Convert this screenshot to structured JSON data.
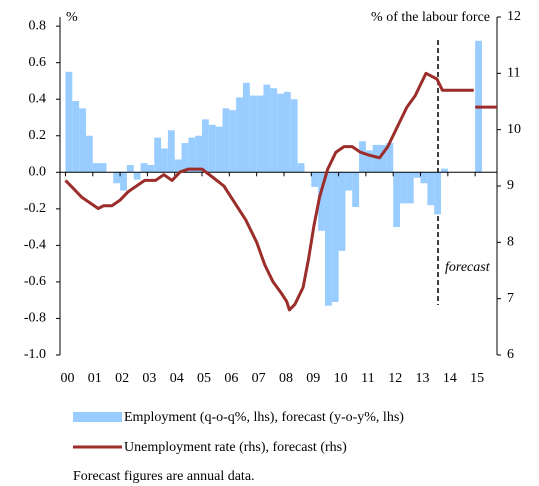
{
  "chart_data": {
    "type": "bar-line",
    "left_unit": "%",
    "right_unit": "% of the labour force",
    "annotation": "forecast",
    "footnote": "Forecast figures are annual data.",
    "xlim": [
      1999.8,
      2015.8
    ],
    "xticks": [
      {
        "value": 2000,
        "label": "00"
      },
      {
        "value": 2001,
        "label": "01"
      },
      {
        "value": 2002,
        "label": "02"
      },
      {
        "value": 2003,
        "label": "03"
      },
      {
        "value": 2004,
        "label": "04"
      },
      {
        "value": 2005,
        "label": "05"
      },
      {
        "value": 2006,
        "label": "06"
      },
      {
        "value": 2007,
        "label": "07"
      },
      {
        "value": 2008,
        "label": "08"
      },
      {
        "value": 2009,
        "label": "09"
      },
      {
        "value": 2010,
        "label": "10"
      },
      {
        "value": 2011,
        "label": "11"
      },
      {
        "value": 2012,
        "label": "12"
      },
      {
        "value": 2013,
        "label": "13"
      },
      {
        "value": 2014,
        "label": "14"
      },
      {
        "value": 2015,
        "label": "15"
      }
    ],
    "ylim": [
      -1,
      0.85
    ],
    "yticks": [
      {
        "value": -1,
        "label": "-1.0"
      },
      -0.8,
      -0.6,
      -0.4,
      -0.2,
      {
        "value": 0,
        "label": "0.0"
      },
      0.2,
      0.4,
      0.6,
      0.8
    ],
    "y2lim": [
      6,
      12
    ],
    "y2ticks": [
      6,
      7,
      8,
      9,
      10,
      11,
      12
    ],
    "series": [
      {
        "name": "Employment (q-o-q%, lhs), forecast (y-o-y%, lhs)",
        "color": "#99ccff",
        "x": [
          2000,
          2000.25,
          2000.5,
          2000.75,
          2001,
          2001.25,
          2001.5,
          2001.75,
          2002,
          2002.25,
          2002.5,
          2002.75,
          2003,
          2003.25,
          2003.5,
          2003.75,
          2004,
          2004.25,
          2004.5,
          2004.75,
          2005,
          2005.25,
          2005.5,
          2005.75,
          2006,
          2006.25,
          2006.5,
          2006.75,
          2007,
          2007.25,
          2007.5,
          2007.75,
          2008,
          2008.25,
          2008.5,
          2008.75,
          2009,
          2009.25,
          2009.5,
          2009.75,
          2010,
          2010.25,
          2010.5,
          2010.75,
          2011,
          2011.25,
          2011.5,
          2011.75,
          2012,
          2012.25,
          2012.5,
          2012.75,
          2013,
          2013.25,
          2013.5,
          2013.75,
          2015
        ],
        "values": [
          0.55,
          0.39,
          0.35,
          0.2,
          0.05,
          0.05,
          0.0,
          -0.06,
          -0.1,
          0.04,
          -0.04,
          0.05,
          0.04,
          0.19,
          0.13,
          0.23,
          0.07,
          0.16,
          0.19,
          0.2,
          0.29,
          0.26,
          0.25,
          0.35,
          0.34,
          0.41,
          0.49,
          0.42,
          0.42,
          0.48,
          0.46,
          0.43,
          0.44,
          0.4,
          0.05,
          0.0,
          -0.08,
          -0.32,
          -0.73,
          -0.71,
          -0.43,
          -0.1,
          -0.19,
          0.17,
          0.12,
          0.15,
          0.15,
          0.16,
          -0.3,
          -0.17,
          -0.17,
          -0.03,
          -0.06,
          -0.18,
          -0.23,
          0.02,
          0.72
        ]
      },
      {
        "name": "Unemployment rate (rhs), forecast (rhs)",
        "color": "#9b2d2a",
        "axis": "y2",
        "x": [
          2000,
          2000.3,
          2000.6,
          2000.9,
          2001.2,
          2001.4,
          2001.7,
          2002,
          2002.3,
          2002.6,
          2002.9,
          2003.3,
          2003.6,
          2003.9,
          2004.2,
          2004.5,
          2005,
          2005.4,
          2005.8,
          2006.2,
          2006.6,
          2007,
          2007.3,
          2007.6,
          2007.9,
          2008.1,
          2008.2,
          2008.4,
          2008.7,
          2008.9,
          2009.1,
          2009.3,
          2009.6,
          2009.9,
          2010.2,
          2010.5,
          2010.8,
          2011.1,
          2011.5,
          2011.8,
          2012.2,
          2012.5,
          2012.8,
          2013,
          2013.2,
          2013.4,
          2013.6,
          2013.8,
          2014.95,
          2014.97,
          2015,
          2015.8
        ],
        "values": [
          9.1,
          8.95,
          8.8,
          8.7,
          8.6,
          8.65,
          8.65,
          8.75,
          8.9,
          9.0,
          9.1,
          9.1,
          9.2,
          9.1,
          9.25,
          9.3,
          9.3,
          9.15,
          9.0,
          8.7,
          8.4,
          8.0,
          7.6,
          7.3,
          7.1,
          6.95,
          6.8,
          6.9,
          7.2,
          7.7,
          8.3,
          8.8,
          9.3,
          9.6,
          9.7,
          9.7,
          9.6,
          9.55,
          9.5,
          9.7,
          10.1,
          10.4,
          10.6,
          10.8,
          11.0,
          10.95,
          10.9,
          10.7,
          10.7,
          null,
          10.4,
          10.4
        ]
      }
    ]
  }
}
